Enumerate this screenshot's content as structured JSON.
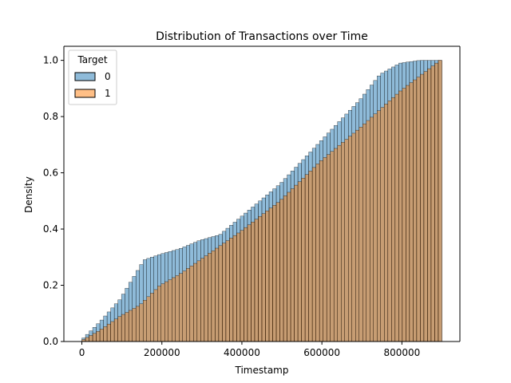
{
  "chart_data": {
    "type": "bar",
    "title": "Distribution of Transactions over Time",
    "xlabel": "Timestamp",
    "ylabel": "Density",
    "xlim": [
      -45000,
      945000
    ],
    "ylim": [
      0,
      1.05
    ],
    "x_ticks": [
      0,
      200000,
      400000,
      600000,
      800000
    ],
    "x_tick_labels": [
      "0",
      "200000",
      "400000",
      "600000",
      "800000"
    ],
    "y_ticks": [
      0.0,
      0.2,
      0.4,
      0.6,
      0.8,
      1.0
    ],
    "y_tick_labels": [
      "0.0",
      "0.2",
      "0.4",
      "0.6",
      "0.8",
      "1.0"
    ],
    "grid": false,
    "legend": {
      "title": "Target",
      "placement": "upper-left",
      "entries": [
        {
          "label": "0",
          "color": "#1f77b4"
        },
        {
          "label": "1",
          "color": "#ff7f0e"
        }
      ]
    },
    "bins": {
      "start": 0,
      "end": 900000,
      "count": 100
    },
    "series": [
      {
        "name": "0",
        "color": "#1f77b4",
        "cumulative_profile": [
          [
            0,
            0.0
          ],
          [
            50000,
            0.07
          ],
          [
            100000,
            0.15
          ],
          [
            160000,
            0.29
          ],
          [
            200000,
            0.31
          ],
          [
            250000,
            0.33
          ],
          [
            300000,
            0.36
          ],
          [
            350000,
            0.38
          ],
          [
            400000,
            0.44
          ],
          [
            500000,
            0.56
          ],
          [
            600000,
            0.71
          ],
          [
            700000,
            0.86
          ],
          [
            750000,
            0.95
          ],
          [
            800000,
            0.99
          ],
          [
            850000,
            1.0
          ],
          [
            900000,
            1.0
          ]
        ]
      },
      {
        "name": "1",
        "color": "#ff7f0e",
        "cumulative_profile": [
          [
            0,
            0.0
          ],
          [
            50000,
            0.04
          ],
          [
            100000,
            0.09
          ],
          [
            150000,
            0.13
          ],
          [
            200000,
            0.2
          ],
          [
            250000,
            0.24
          ],
          [
            300000,
            0.29
          ],
          [
            400000,
            0.39
          ],
          [
            500000,
            0.5
          ],
          [
            600000,
            0.64
          ],
          [
            700000,
            0.76
          ],
          [
            800000,
            0.89
          ],
          [
            900000,
            1.0
          ]
        ]
      }
    ]
  }
}
